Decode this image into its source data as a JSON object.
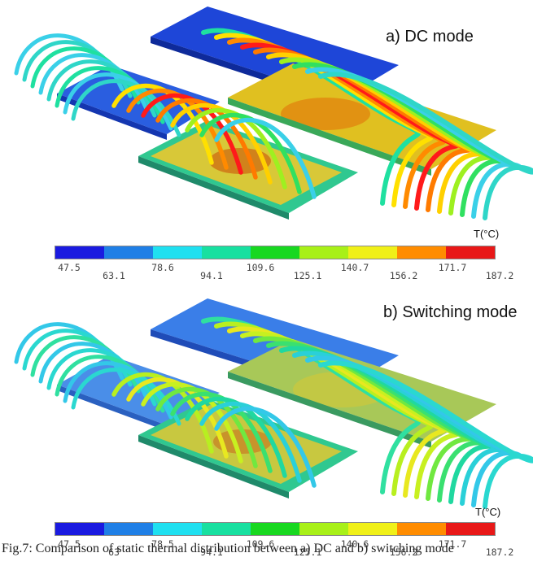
{
  "panel_a": {
    "title": "a) DC mode",
    "unit": "T(°C)",
    "ticks": [
      "47.5",
      "63.1",
      "78.6",
      "94.1",
      "109.6",
      "125.1",
      "140.7",
      "156.2",
      "171.7",
      "187.2"
    ],
    "wire_colors": [
      "#3ad0e8",
      "#2fd6c8",
      "#1fe0a0",
      "#ffe000",
      "#ff8a00",
      "#ff1a1a",
      "#ff7a00",
      "#ffd000",
      "#9ef020",
      "#30e060"
    ]
  },
  "panel_b": {
    "title": "b) Switching mode",
    "unit": "T(°C)",
    "ticks": [
      "47.5",
      "63",
      "78.5",
      "94.1",
      "109.6",
      "125.1",
      "140.6",
      "156.2",
      "171.7",
      "187.2"
    ],
    "wire_colors": [
      "#33c8e8",
      "#2ad8d0",
      "#30e0a0",
      "#b8ef20",
      "#e8e820",
      "#c8f020",
      "#70e840",
      "#3ae070",
      "#20d8a0",
      "#2ad0d8"
    ]
  },
  "colorbar": [
    "#1a1ae0",
    "#1f7fe6",
    "#1fe0f0",
    "#18e0a0",
    "#18d820",
    "#a8f018",
    "#f0f018",
    "#ff8c00",
    "#e81818"
  ],
  "caption": "Fig.7: Comparison of static thermal distribution between a) DC and b) switching mode"
}
